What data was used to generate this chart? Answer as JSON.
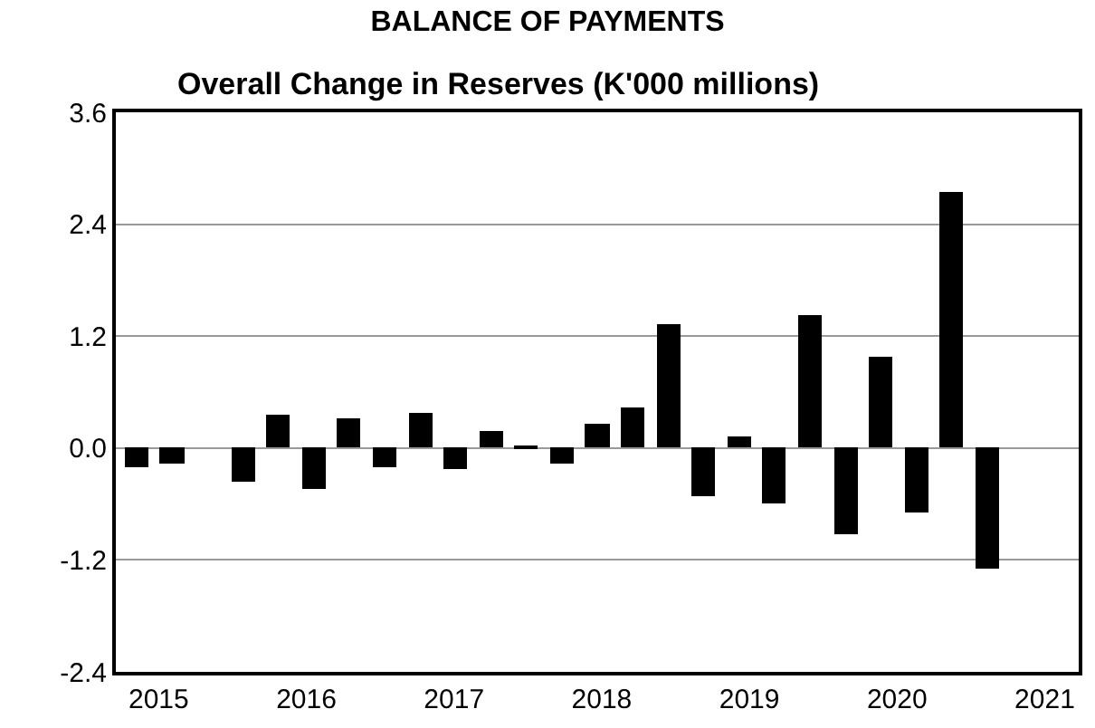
{
  "chart_data": {
    "type": "bar",
    "title": "BALANCE OF PAYMENTS",
    "subtitle": "Overall Change in Reserves (K'000 millions)",
    "x": [
      2014.85,
      2015.09,
      2015.33,
      2015.57,
      2015.81,
      2016.05,
      2016.29,
      2016.53,
      2016.77,
      2017.01,
      2017.25,
      2017.49,
      2017.73,
      2017.97,
      2018.21,
      2018.45,
      2018.69,
      2018.93,
      2019.17,
      2019.41,
      2019.65,
      2019.89,
      2020.13,
      2020.37,
      2020.61
    ],
    "values": [
      -0.2,
      -0.17,
      0.0,
      -0.36,
      0.36,
      -0.43,
      0.31,
      -0.2,
      0.37,
      -0.22,
      0.19,
      0.03,
      -0.17,
      0.27,
      0.43,
      1.32,
      -0.51,
      0.12,
      -0.6,
      1.42,
      -0.93,
      0.98,
      -0.7,
      2.75,
      -1.29
    ],
    "color": "#000000",
    "xlim": [
      2014.71,
      2021.23
    ],
    "xticks": [
      2015,
      2016,
      2017,
      2018,
      2019,
      2020,
      2021
    ],
    "ylim": [
      -2.4,
      3.6
    ],
    "yticks": [
      -2.4,
      -1.2,
      {
        "value": 0,
        "label": "0.0"
      },
      1.2,
      2.4,
      3.6
    ],
    "grid": "y"
  }
}
